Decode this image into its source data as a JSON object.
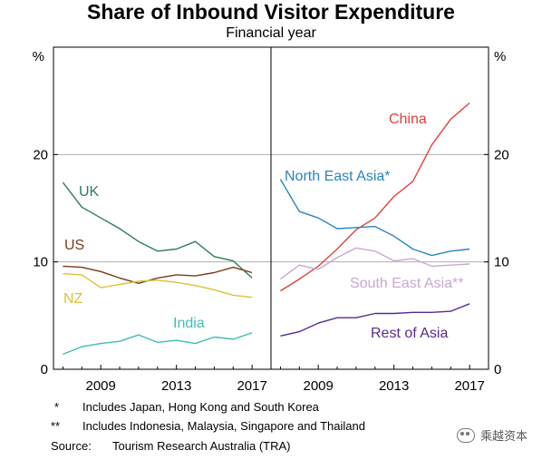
{
  "title": "Share of Inbound Visitor Expenditure",
  "subtitle": "Financial year",
  "notes": [
    {
      "mark": "*",
      "text": "Includes Japan, Hong Kong and South Korea"
    },
    {
      "mark": "**",
      "text": "Includes Indonesia, Malaysia, Singapore and Thailand"
    }
  ],
  "source": {
    "label": "Source:",
    "text": "Tourism Research Australia (TRA)"
  },
  "watermark": "乘越资本",
  "chart_data": [
    {
      "type": "line",
      "panel": "left",
      "ylabel": "%",
      "ylim": [
        0,
        30
      ],
      "yticks": [
        0,
        10,
        20
      ],
      "xlim": [
        2006.5,
        2018
      ],
      "xticks": [
        2009,
        2013,
        2017
      ],
      "grid": true,
      "series": [
        {
          "name": "UK",
          "color": "#2e7d5b",
          "x": [
            2007,
            2008,
            2009,
            2010,
            2011,
            2012,
            2013,
            2014,
            2015,
            2016,
            2017
          ],
          "values": [
            17.4,
            15.1,
            14.1,
            13.1,
            11.9,
            11.0,
            11.2,
            11.9,
            10.5,
            10.1,
            8.5
          ]
        },
        {
          "name": "US",
          "color": "#7a3b1e",
          "x": [
            2007,
            2008,
            2009,
            2010,
            2011,
            2012,
            2013,
            2014,
            2015,
            2016,
            2017
          ],
          "values": [
            9.6,
            9.5,
            9.1,
            8.5,
            8.0,
            8.5,
            8.8,
            8.7,
            9.0,
            9.5,
            9.0
          ]
        },
        {
          "name": "NZ",
          "color": "#d9c33a",
          "x": [
            2007,
            2008,
            2009,
            2010,
            2011,
            2012,
            2013,
            2014,
            2015,
            2016,
            2017
          ],
          "values": [
            8.9,
            8.8,
            7.6,
            7.9,
            8.2,
            8.3,
            8.1,
            7.8,
            7.4,
            6.9,
            6.7
          ]
        },
        {
          "name": "India",
          "color": "#3fbdb5",
          "x": [
            2007,
            2008,
            2009,
            2010,
            2011,
            2012,
            2013,
            2014,
            2015,
            2016,
            2017
          ],
          "values": [
            1.4,
            2.1,
            2.4,
            2.6,
            3.2,
            2.5,
            2.7,
            2.4,
            3.0,
            2.8,
            3.4
          ]
        }
      ]
    },
    {
      "type": "line",
      "panel": "right",
      "ylabel": "%",
      "ylim": [
        0,
        30
      ],
      "yticks": [
        0,
        10,
        20
      ],
      "xlim": [
        2006.5,
        2018
      ],
      "xticks": [
        2009,
        2013,
        2017
      ],
      "grid": true,
      "series": [
        {
          "name": "China",
          "color": "#e0403c",
          "x": [
            2007,
            2008,
            2009,
            2010,
            2011,
            2012,
            2013,
            2014,
            2015,
            2016,
            2017
          ],
          "values": [
            7.3,
            8.4,
            9.6,
            11.2,
            13.0,
            14.1,
            16.1,
            17.5,
            20.9,
            23.3,
            24.8
          ]
        },
        {
          "name": "North East Asia*",
          "color": "#2a85c0",
          "x": [
            2007,
            2008,
            2009,
            2010,
            2011,
            2012,
            2013,
            2014,
            2015,
            2016,
            2017
          ],
          "values": [
            17.7,
            14.7,
            14.1,
            13.1,
            13.2,
            13.3,
            12.4,
            11.2,
            10.6,
            11.0,
            11.2
          ]
        },
        {
          "name": "South East Asia**",
          "color": "#c9a8d3",
          "x": [
            2007,
            2008,
            2009,
            2010,
            2011,
            2012,
            2013,
            2014,
            2015,
            2016,
            2017
          ],
          "values": [
            8.4,
            9.7,
            9.3,
            10.4,
            11.3,
            11.0,
            10.1,
            10.3,
            9.6,
            9.7,
            9.8
          ]
        },
        {
          "name": "Rest of Asia",
          "color": "#5a2a8f",
          "x": [
            2007,
            2008,
            2009,
            2010,
            2011,
            2012,
            2013,
            2014,
            2015,
            2016,
            2017
          ],
          "values": [
            3.1,
            3.5,
            4.3,
            4.8,
            4.8,
            5.2,
            5.2,
            5.3,
            5.3,
            5.4,
            6.1
          ]
        }
      ]
    }
  ]
}
